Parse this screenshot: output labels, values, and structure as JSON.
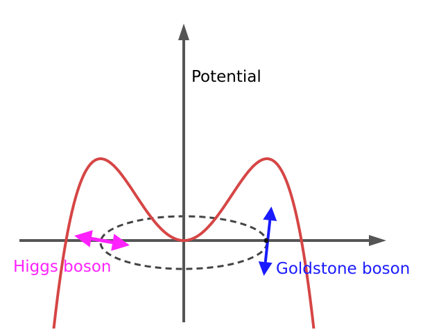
{
  "labels": {
    "potential": "Potential",
    "higgs": "Higgs boson",
    "goldstone": "Goldstone boson"
  },
  "colors": {
    "axis": "#555555",
    "potential_curve": "#d64545",
    "vacuum_ring": "#444444",
    "higgs": "#ff22ff",
    "goldstone": "#1a1aff",
    "background": "#ffffff"
  },
  "icons": {
    "axis_arrowheads": "triangle",
    "higgs_mode": "double-headed-arrow-horizontal",
    "goldstone_mode": "double-headed-arrow-vertical"
  }
}
